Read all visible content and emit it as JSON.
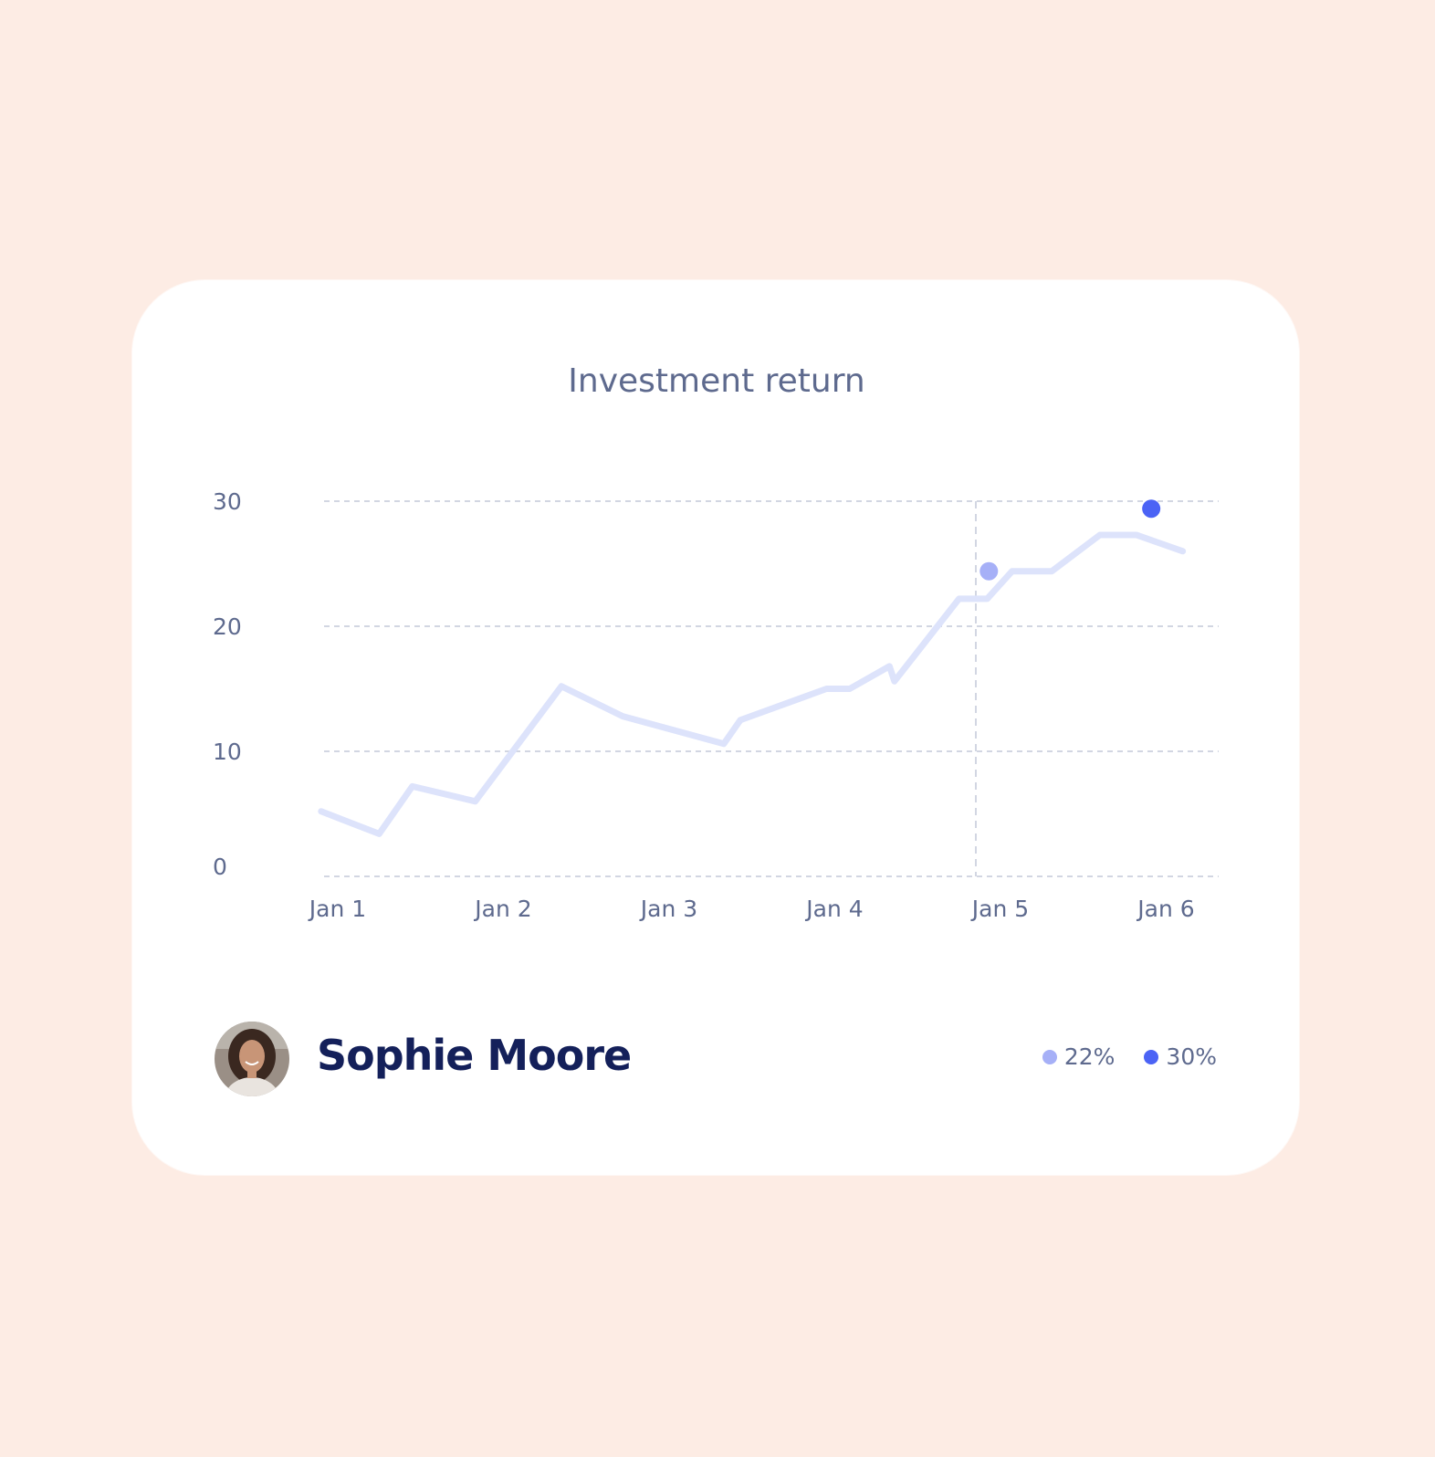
{
  "colors": {
    "background": "#fdece4",
    "card": "#ffffff",
    "line": "#dde3fb",
    "marker_light": "#a6b0f7",
    "marker_dark": "#4b63f5",
    "title": "#5e6a8e",
    "name": "#14205a"
  },
  "chart_data": {
    "type": "line",
    "title": "Investment return",
    "categories": [
      "Jan 1",
      "Jan 2",
      "Jan 3",
      "Jan 4",
      "Jan 5",
      "Jan 6"
    ],
    "y_ticks": [
      "0",
      "10",
      "20",
      "30"
    ],
    "ylim": [
      0,
      30
    ],
    "grid": true,
    "series": [
      {
        "x": [
          0.9,
          1.25,
          1.45,
          1.83,
          2.35,
          2.72,
          3.33,
          3.43,
          3.95,
          4.09,
          4.33,
          4.36,
          4.75,
          4.92,
          5.07,
          5.31,
          5.6,
          5.82,
          6.1
        ],
        "values": [
          5.2,
          3.4,
          7.2,
          6.0,
          15.2,
          12.8,
          10.6,
          12.5,
          15.0,
          15.0,
          16.8,
          15.6,
          22.2,
          22.2,
          24.4,
          24.4,
          27.3,
          27.3,
          26.0
        ]
      }
    ],
    "highlight_x": "Jan 5",
    "markers": [
      {
        "x": 4.93,
        "value": 24.4,
        "color": "#a6b0f7"
      },
      {
        "x": 5.91,
        "value": 29.4,
        "color": "#4b63f5"
      }
    ]
  },
  "user": {
    "name": "Sophie Moore"
  },
  "legend": [
    {
      "label": "22%",
      "color": "#a6b0f7"
    },
    {
      "label": "30%",
      "color": "#4b63f5"
    }
  ]
}
